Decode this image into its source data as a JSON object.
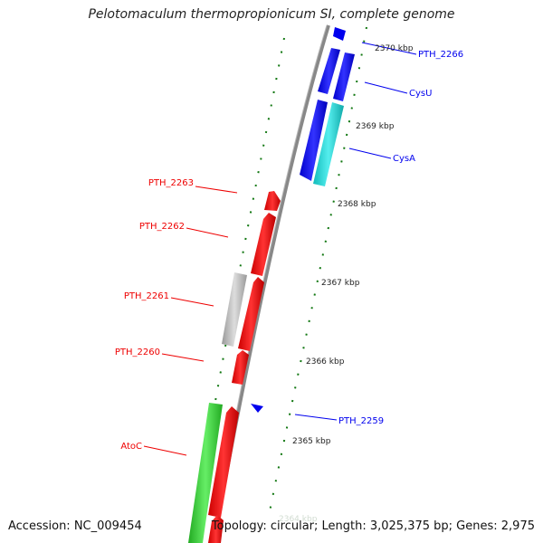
{
  "title": "Pelotomaculum thermopropionicum SI, complete genome",
  "footer": {
    "accession": "Accession: NC_009454",
    "summary": "Topology: circular; Length: 3,025,375 bp; Genes: 2,975"
  },
  "colors": {
    "forward": "#0000ee",
    "forward_light": "#22d3d3",
    "reverse": "#ee0000",
    "reverse_grey": "#bbbbbb",
    "reverse_green": "#33cc33",
    "backbone": "#888888",
    "tick": "#117711"
  },
  "scale": {
    "unit": "kbp",
    "labels": [
      "2370 kbp",
      "2369 kbp",
      "2368 kbp",
      "2367 kbp",
      "2366 kbp",
      "2365 kbp",
      "2364 kbp"
    ]
  },
  "forward_genes": [
    {
      "name": "PTH_2266",
      "color": "forward"
    },
    {
      "name": "CysU",
      "color": "forward"
    },
    {
      "name": "CysA",
      "color": "forward"
    },
    {
      "name": "PTH_2259",
      "color": "forward"
    }
  ],
  "reverse_genes": [
    {
      "name": "PTH_2263",
      "color": "reverse"
    },
    {
      "name": "PTH_2262",
      "color": "reverse"
    },
    {
      "name": "PTH_2261",
      "color": "reverse_grey"
    },
    {
      "name": "PTH_2260",
      "color": "reverse"
    },
    {
      "name": "AtoC",
      "color": "reverse_green"
    }
  ]
}
